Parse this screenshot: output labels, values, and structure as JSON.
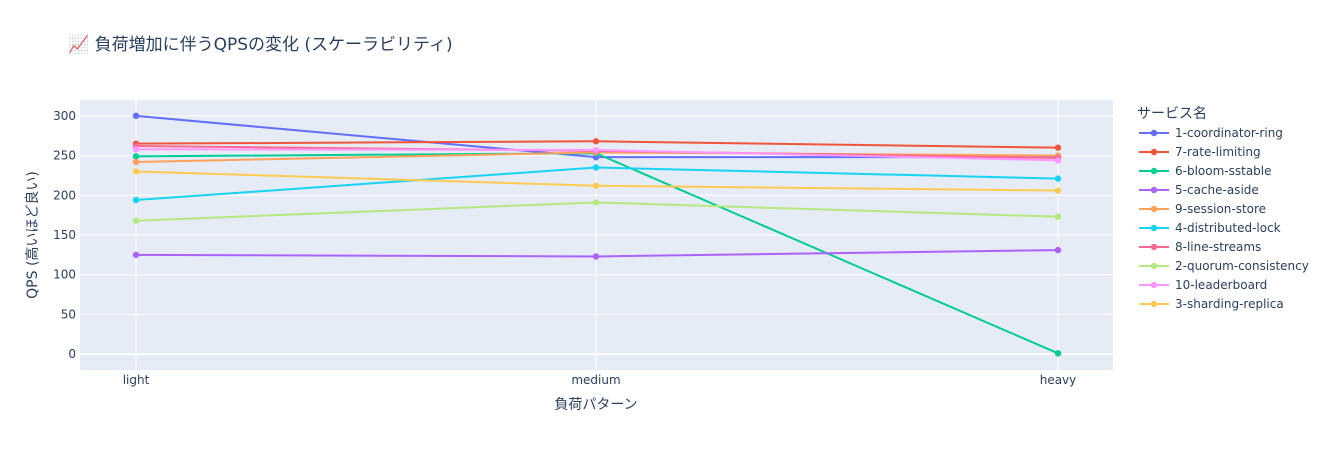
{
  "chart_data": {
    "type": "line",
    "title": "📈 負荷増加に伴うQPSの変化 (スケーラビリティ)",
    "xlabel": "負荷パターン",
    "ylabel": "QPS (高いほど良い)",
    "categories": [
      "light",
      "medium",
      "heavy"
    ],
    "ylim": [
      -20,
      320
    ],
    "yticks": [
      0,
      50,
      100,
      150,
      200,
      250,
      300
    ],
    "grid": true,
    "legend": {
      "title": "サービス名",
      "placement": "right"
    },
    "series": [
      {
        "name": "1-coordinator-ring",
        "values": [
          300,
          248,
          248
        ],
        "color": "#636efa"
      },
      {
        "name": "7-rate-limiting",
        "values": [
          265,
          268,
          260
        ],
        "color": "#ef553b"
      },
      {
        "name": "6-bloom-sstable",
        "values": [
          249,
          253,
          1
        ],
        "color": "#00cc96"
      },
      {
        "name": "5-cache-aside",
        "values": [
          125,
          123,
          131
        ],
        "color": "#ab63fa"
      },
      {
        "name": "9-session-store",
        "values": [
          242,
          254,
          250
        ],
        "color": "#ffa15a"
      },
      {
        "name": "4-distributed-lock",
        "values": [
          194,
          235,
          221
        ],
        "color": "#19d3f3"
      },
      {
        "name": "8-line-streams",
        "values": [
          262,
          256,
          247
        ],
        "color": "#ff6692"
      },
      {
        "name": "2-quorum-consistency",
        "values": [
          168,
          191,
          173
        ],
        "color": "#b6e880"
      },
      {
        "name": "10-leaderboard",
        "values": [
          258,
          257,
          244
        ],
        "color": "#ff97ff"
      },
      {
        "name": "3-sharding-replica",
        "values": [
          230,
          212,
          206
        ],
        "color": "#fecb52"
      }
    ]
  },
  "colors": {
    "plot_bg": "#e5ecf6",
    "grid": "#ffffff",
    "text": "#2a3f5f"
  }
}
